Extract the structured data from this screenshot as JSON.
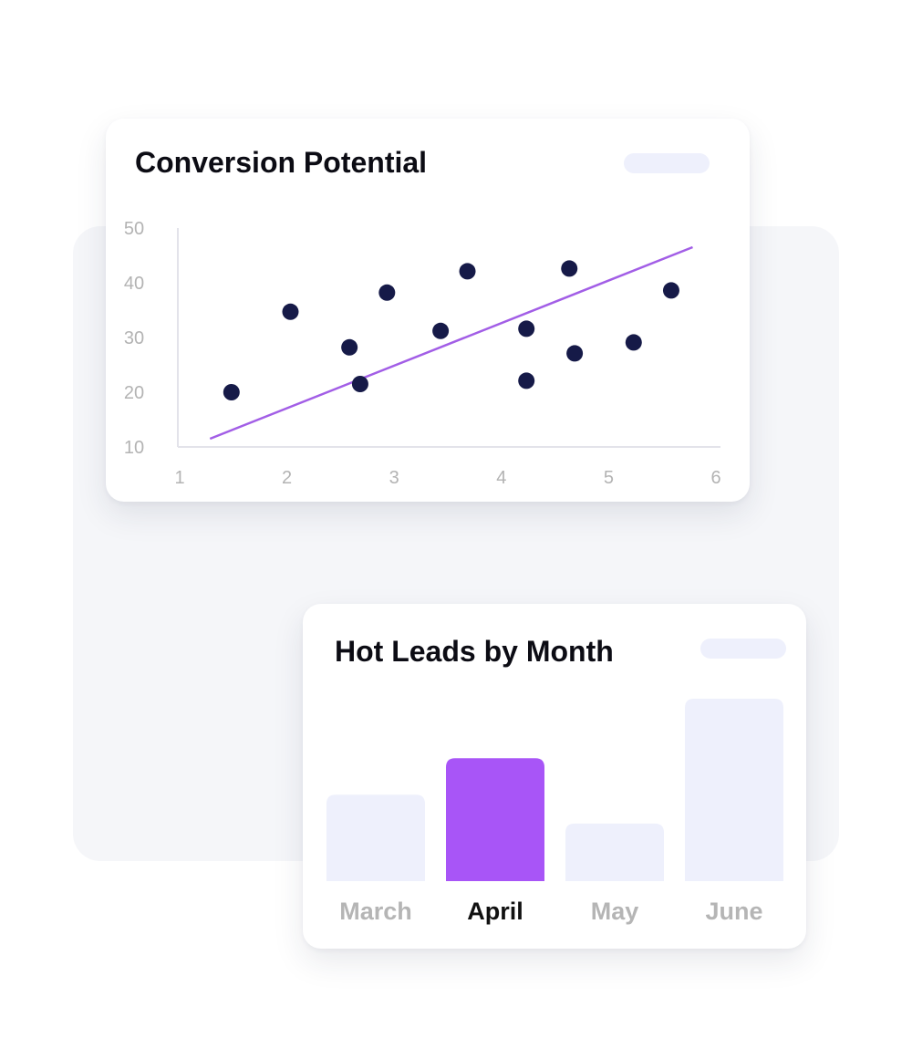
{
  "colors": {
    "point": "#161a48",
    "trendline": "#a25ee6",
    "axis": "#e3e3ea",
    "tick_text": "#b3b3b3",
    "bar_default": "#eef0fc",
    "bar_highlight": "#a855f7",
    "label_default": "#b5b5b5",
    "label_highlight": "#111111",
    "pill": "#eef0fc"
  },
  "scatter_card": {
    "title": "Conversion Potential"
  },
  "bars_card": {
    "title": "Hot Leads by Month"
  },
  "chart_data": [
    {
      "type": "scatter",
      "title": "Conversion Potential",
      "xlabel": "",
      "ylabel": "",
      "xlim": [
        1,
        6
      ],
      "ylim": [
        10,
        50
      ],
      "x_ticks": [
        "1",
        "2",
        "3",
        "4",
        "5",
        "6"
      ],
      "y_ticks": [
        "10",
        "20",
        "30",
        "40",
        "50"
      ],
      "grid": false,
      "points": [
        {
          "x": 1.5,
          "y": 20
        },
        {
          "x": 2.05,
          "y": 34.7
        },
        {
          "x": 2.6,
          "y": 28.2
        },
        {
          "x": 2.7,
          "y": 21.5
        },
        {
          "x": 2.95,
          "y": 38.2
        },
        {
          "x": 3.45,
          "y": 31.2
        },
        {
          "x": 3.7,
          "y": 42.1
        },
        {
          "x": 4.25,
          "y": 22.1
        },
        {
          "x": 4.25,
          "y": 31.6
        },
        {
          "x": 4.65,
          "y": 42.6
        },
        {
          "x": 4.7,
          "y": 27.1
        },
        {
          "x": 5.25,
          "y": 29.1
        },
        {
          "x": 5.6,
          "y": 38.6
        }
      ],
      "trendline": [
        {
          "x": 1.3,
          "y": 11.5
        },
        {
          "x": 5.8,
          "y": 46.5
        }
      ]
    },
    {
      "type": "bar",
      "title": "Hot Leads by Month",
      "categories": [
        "March",
        "April",
        "May",
        "June"
      ],
      "values": [
        45,
        64,
        30,
        95
      ],
      "highlight": "April",
      "legend": "none"
    }
  ]
}
